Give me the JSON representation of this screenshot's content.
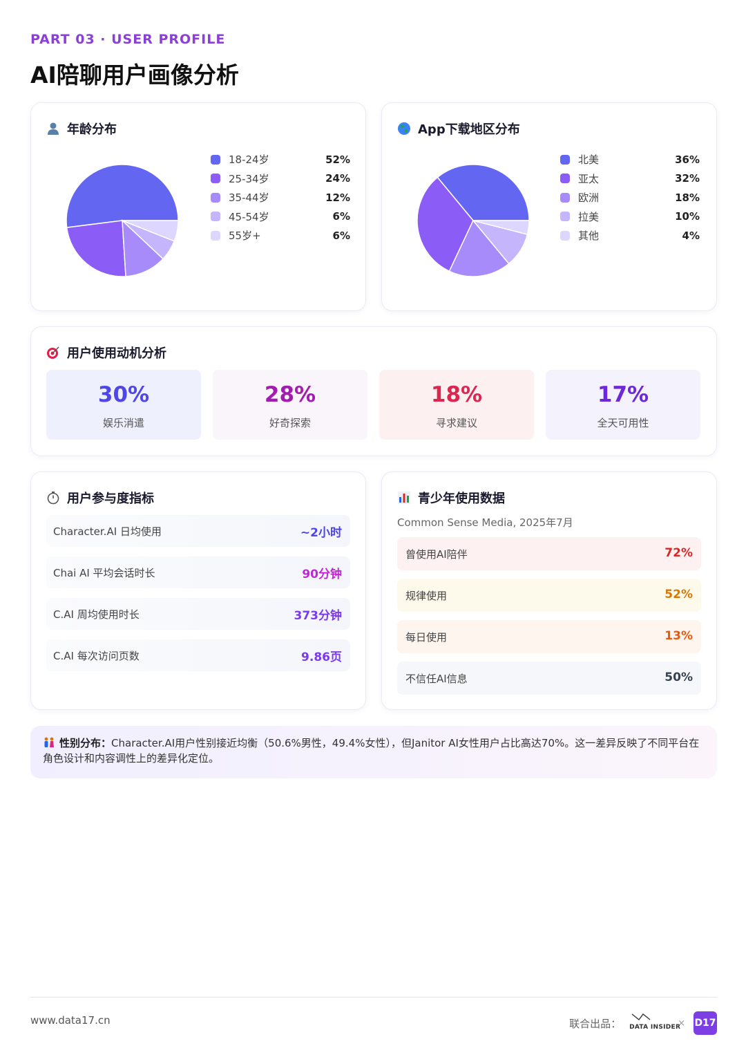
{
  "header": {
    "part": "PART 03 · USER PROFILE",
    "title": "AI陪聊用户画像分析"
  },
  "age_card": {
    "title": "年龄分布",
    "icon": "person-icon",
    "legend": [
      {
        "label": "18-24岁",
        "pct": "52%",
        "color": "#6366f1"
      },
      {
        "label": "25-34岁",
        "pct": "24%",
        "color": "#8b5cf6"
      },
      {
        "label": "35-44岁",
        "pct": "12%",
        "color": "#a78bfa"
      },
      {
        "label": "45-54岁",
        "pct": "6%",
        "color": "#c4b5fd"
      },
      {
        "label": "55岁+",
        "pct": "6%",
        "color": "#ddd6fe"
      }
    ]
  },
  "region_card": {
    "title": "App下载地区分布",
    "icon": "globe-icon",
    "legend": [
      {
        "label": "北美",
        "pct": "36%",
        "color": "#6366f1"
      },
      {
        "label": "亚太",
        "pct": "32%",
        "color": "#8b5cf6"
      },
      {
        "label": "欧洲",
        "pct": "18%",
        "color": "#a78bfa"
      },
      {
        "label": "拉美",
        "pct": "10%",
        "color": "#c4b5fd"
      },
      {
        "label": "其他",
        "pct": "4%",
        "color": "#ddd6fe"
      }
    ]
  },
  "chart_data": [
    {
      "type": "pie",
      "title": "年龄分布",
      "categories": [
        "18-24岁",
        "25-34岁",
        "35-44岁",
        "45-54岁",
        "55岁+"
      ],
      "values": [
        52,
        24,
        12,
        6,
        6
      ],
      "legend": "right"
    },
    {
      "type": "pie",
      "title": "App下载地区分布",
      "categories": [
        "北美",
        "亚太",
        "欧洲",
        "拉美",
        "其他"
      ],
      "values": [
        36,
        32,
        18,
        10,
        4
      ],
      "legend": "right"
    }
  ],
  "motivation": {
    "title": "用户使用动机分析",
    "icon": "target-icon",
    "items": [
      {
        "value": "30%",
        "label": "娱乐消遣",
        "color": "#4f46e5",
        "bg": "#eef0fd"
      },
      {
        "value": "28%",
        "label": "好奇探索",
        "color": "#a21caf",
        "bg": "#faf4fb"
      },
      {
        "value": "18%",
        "label": "寻求建议",
        "color": "#dc2650",
        "bg": "#fdf0f1"
      },
      {
        "value": "17%",
        "label": "全天可用性",
        "color": "#6d28d9",
        "bg": "#f4f2fd"
      }
    ]
  },
  "engagement": {
    "title": "用户参与度指标",
    "icon": "stopwatch-icon",
    "rows": [
      {
        "label": "Character.AI 日均使用",
        "value": "~2小时",
        "color": "#4f46e5"
      },
      {
        "label": "Chai AI 平均会话时长",
        "value": "90分钟",
        "color": "#c026d3"
      },
      {
        "label": "C.AI 周均使用时长",
        "value": "373分钟",
        "color": "#7c3aed"
      },
      {
        "label": "C.AI 每次访问页数",
        "value": "9.86页",
        "color": "#7c3aed"
      }
    ]
  },
  "teen": {
    "title": "青少年使用数据",
    "icon": "bar-chart-icon",
    "subtitle": "Common Sense Media, 2025年7月",
    "rows": [
      {
        "label": "曾使用AI陪伴",
        "value": "72%",
        "color": "#dc2626",
        "bg": "#fdf1f1"
      },
      {
        "label": "规律使用",
        "value": "52%",
        "color": "#d97706",
        "bg": "#fefaeb"
      },
      {
        "label": "每日使用",
        "value": "13%",
        "color": "#ea580c",
        "bg": "#fef5ee"
      },
      {
        "label": "不信任AI信息",
        "value": "50%",
        "color": "#374151",
        "bg": "#f6f7fa"
      }
    ]
  },
  "note": {
    "icon": "couple-icon",
    "label": "性别分布：",
    "text": "Character.AI用户性别接近均衡（50.6%男性，49.4%女性），但Janitor AI女性用户占比高达70%。这一差异反映了不同平台在角色设计和内容调性上的差异化定位。"
  },
  "footer": {
    "url": "www.data17.cn",
    "joint": "联合出品：",
    "logo1": "DATA INSIDER",
    "times": "×",
    "logo2": "D17"
  }
}
